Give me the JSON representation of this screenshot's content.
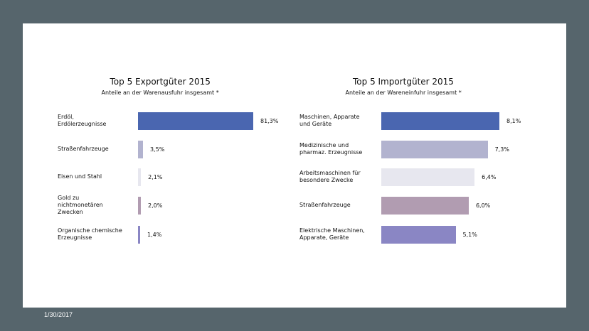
{
  "footer": {
    "date": "1/30/2017"
  },
  "chart_data": [
    {
      "type": "bar",
      "orientation": "horizontal",
      "title": "Top 5  Exportgüter 2015",
      "subtitle": "Anteile an der Warenausfuhr insgesamt *",
      "categories": [
        "Erdöl,\nErdölerzeugnisse",
        "Straßenfahrzeuge",
        "Eisen und Stahl",
        "Gold zu\nnichtmonetären\nZwecken",
        "Organische chemische\nErzeugnisse"
      ],
      "values": [
        81.3,
        3.5,
        2.1,
        2.0,
        1.4
      ],
      "value_labels": [
        "81,3%",
        "3,5%",
        "2,1%",
        "2,0%",
        "1,4%"
      ],
      "colors": [
        "#4a66b0",
        "#b2b3cf",
        "#e7e7ef",
        "#b19cb1",
        "#8a86c4"
      ],
      "xlim": [
        0,
        81.3
      ]
    },
    {
      "type": "bar",
      "orientation": "horizontal",
      "title": "Top 5  Importgüter 2015",
      "subtitle": "Anteile an der Wareneinfuhr insgesamt *",
      "categories": [
        "Maschinen, Apparate\nund Geräte",
        "Medizinische und\npharmaz. Erzeugnisse",
        "Arbeitsmaschinen für\nbesondere Zwecke",
        "Straßenfahrzeuge",
        "Elektrische Maschinen,\nApparate, Geräte"
      ],
      "values": [
        8.1,
        7.3,
        6.4,
        6.0,
        5.1
      ],
      "value_labels": [
        "8,1%",
        "7,3%",
        "6,4%",
        "6,0%",
        "5,1%"
      ],
      "colors": [
        "#4a66b0",
        "#b2b3cf",
        "#e7e7ef",
        "#b19cb1",
        "#8a86c4"
      ],
      "xlim": [
        0,
        8.1
      ]
    }
  ]
}
